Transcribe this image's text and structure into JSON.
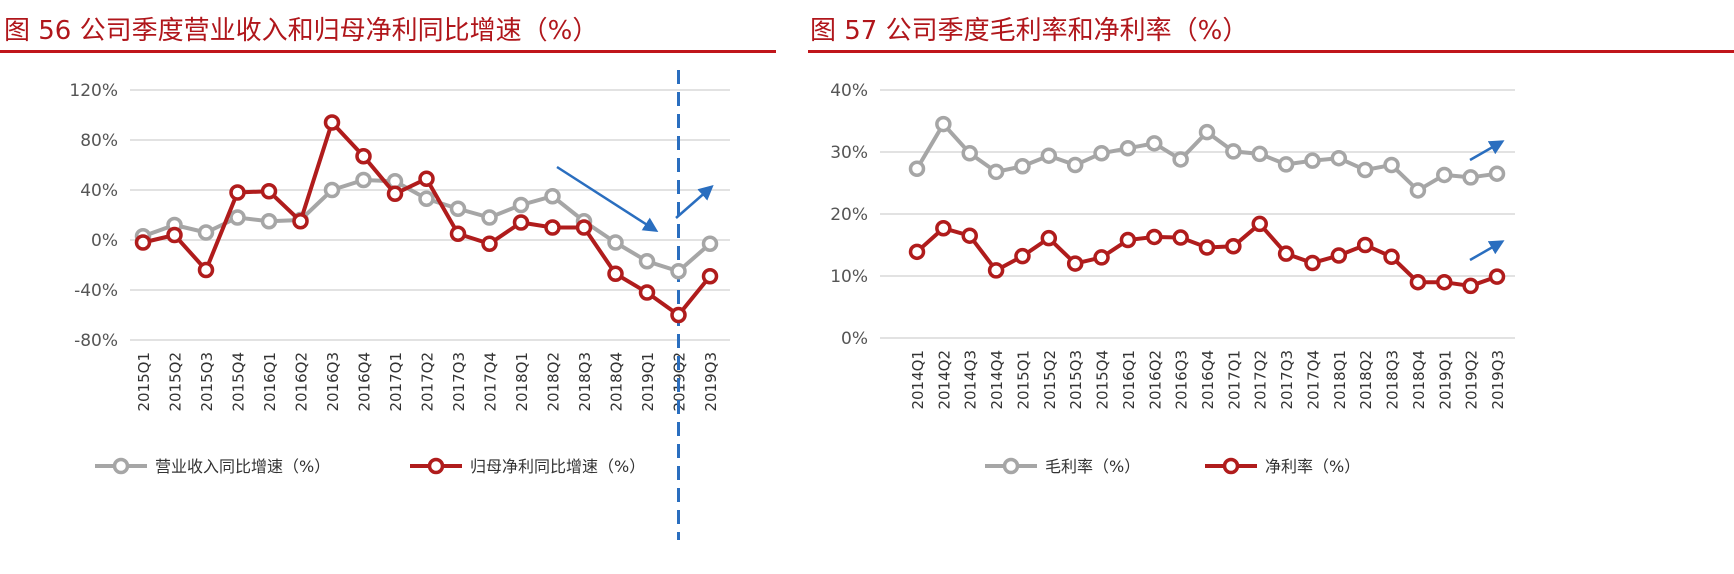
{
  "colors": {
    "gray": "#a6a6a6",
    "red": "#b01c1c",
    "arrow": "#2a6ebf",
    "grid": "#d9d9d9",
    "title": "#b0161b"
  },
  "chart_data": [
    {
      "type": "line",
      "title": "图 56 公司季度营业收入和归母净利同比增速（%）",
      "categories": [
        "2015Q1",
        "2015Q2",
        "2015Q3",
        "2015Q4",
        "2016Q1",
        "2016Q2",
        "2016Q3",
        "2016Q4",
        "2017Q1",
        "2017Q2",
        "2017Q3",
        "2017Q4",
        "2018Q1",
        "2018Q2",
        "2018Q3",
        "2018Q4",
        "2019Q1",
        "2019Q2",
        "2019Q3"
      ],
      "ylim": [
        -80,
        120
      ],
      "yticks": [
        -80,
        -40,
        0,
        40,
        80,
        120
      ],
      "tick_suffix": "%",
      "grid": true,
      "legend": "bottom",
      "series": [
        {
          "name": "营业收入同比增速（%）",
          "color": "gray",
          "values": [
            3,
            12,
            6,
            18,
            15,
            16,
            40,
            48,
            47,
            33,
            25,
            18,
            28,
            35,
            15,
            -2,
            -17,
            -25,
            -3
          ]
        },
        {
          "name": "归母净利同比增速（%）",
          "color": "red",
          "values": [
            -2,
            4,
            -24,
            38,
            39,
            15,
            94,
            67,
            37,
            49,
            5,
            -3,
            14,
            10,
            10,
            -27,
            -42,
            -60,
            -29
          ]
        }
      ],
      "annotations": {
        "dashed_vline_at": "2019Q2",
        "arrows": [
          "down-trend",
          "up-trend"
        ]
      }
    },
    {
      "type": "line",
      "title": "图 57 公司季度毛利率和净利率（%）",
      "categories": [
        "2014Q1",
        "2014Q2",
        "2014Q3",
        "2014Q4",
        "2015Q1",
        "2015Q2",
        "2015Q3",
        "2015Q4",
        "2016Q1",
        "2016Q2",
        "2016Q3",
        "2016Q4",
        "2017Q1",
        "2017Q2",
        "2017Q3",
        "2017Q4",
        "2018Q1",
        "2018Q2",
        "2018Q3",
        "2018Q4",
        "2019Q1",
        "2019Q2",
        "2019Q3"
      ],
      "ylim": [
        0,
        40
      ],
      "yticks": [
        0,
        10,
        20,
        30,
        40
      ],
      "tick_suffix": "%",
      "grid": true,
      "legend": "bottom",
      "series": [
        {
          "name": "毛利率（%）",
          "color": "gray",
          "values": [
            27.3,
            34.5,
            29.8,
            26.8,
            27.7,
            29.4,
            27.9,
            29.8,
            30.6,
            31.4,
            28.8,
            33.2,
            30.1,
            29.7,
            28.0,
            28.6,
            29.0,
            27.1,
            27.9,
            23.8,
            26.3,
            25.9,
            26.5
          ]
        },
        {
          "name": "净利率（%）",
          "color": "red",
          "values": [
            13.9,
            17.7,
            16.5,
            10.9,
            13.2,
            16.1,
            12.0,
            13.0,
            15.8,
            16.3,
            16.2,
            14.6,
            14.8,
            18.4,
            13.6,
            12.1,
            13.3,
            15.0,
            13.1,
            9.0,
            9.0,
            8.4,
            9.9
          ]
        }
      ],
      "annotations": {
        "arrows": [
          "up-trend",
          "up-trend"
        ]
      }
    }
  ]
}
